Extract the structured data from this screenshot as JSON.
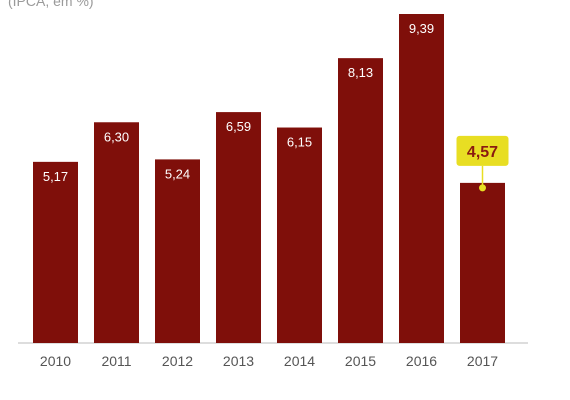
{
  "header": {
    "subtitle": "(IPCA, em %)"
  },
  "chart_data": {
    "type": "bar",
    "subtitle": "(IPCA, em %)",
    "categories": [
      "2010",
      "2011",
      "2012",
      "2013",
      "2014",
      "2015",
      "2016",
      "2017"
    ],
    "values": [
      5.17,
      6.3,
      5.24,
      6.59,
      6.15,
      8.13,
      9.39,
      4.57
    ],
    "value_labels": [
      "5,17",
      "6,30",
      "5,24",
      "6,59",
      "6,15",
      "8,13",
      "9,39",
      "4,57"
    ],
    "highlight_index": 7,
    "ylim": [
      0,
      9.5
    ],
    "grid": false,
    "legend": "none",
    "colors": {
      "bar": "#7f0f0a",
      "highlight_box": "#e8de23",
      "highlight_text": "#8a1a10",
      "tick_text": "#555555",
      "baseline": "#bbbbbb",
      "subtitle": "#9a9a9a"
    }
  }
}
